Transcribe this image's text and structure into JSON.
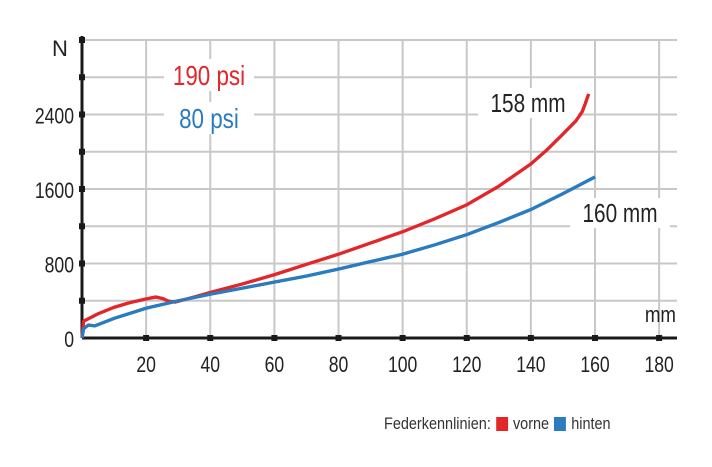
{
  "chart_data": {
    "type": "line",
    "xlabel": "mm",
    "ylabel": "N",
    "xlim": [
      0,
      180
    ],
    "ylim": [
      0,
      3200
    ],
    "x_ticks": [
      "20",
      "40",
      "60",
      "80",
      "100",
      "120",
      "140",
      "160",
      "180"
    ],
    "y_ticks": [
      "0",
      "800",
      "1600",
      "2400"
    ],
    "grid": true,
    "series": [
      {
        "name": "190 psi",
        "color": "#e3262a",
        "end_label": "158 mm",
        "x": [
          0,
          0.5,
          5,
          10,
          15,
          20,
          23,
          25,
          27,
          29,
          35,
          40,
          50,
          60,
          70,
          80,
          90,
          100,
          110,
          120,
          130,
          140,
          145,
          150,
          154,
          156,
          157,
          158
        ],
        "y": [
          0,
          180,
          260,
          330,
          380,
          420,
          440,
          425,
          395,
          385,
          440,
          490,
          580,
          680,
          790,
          900,
          1020,
          1140,
          1280,
          1430,
          1630,
          1870,
          2020,
          2190,
          2330,
          2430,
          2520,
          2620
        ]
      },
      {
        "name": "80 psi",
        "color": "#2a7bbf",
        "end_label": "160 mm",
        "x": [
          0,
          0.5,
          2,
          4,
          10,
          20,
          30,
          40,
          50,
          60,
          70,
          80,
          90,
          100,
          110,
          120,
          130,
          140,
          150,
          160
        ],
        "y": [
          0,
          100,
          140,
          130,
          210,
          320,
          400,
          470,
          535,
          600,
          665,
          740,
          820,
          900,
          1000,
          1110,
          1240,
          1380,
          1550,
          1730
        ]
      }
    ]
  },
  "legend": {
    "title": "Federkennlinien:",
    "items": [
      {
        "label": "vorne",
        "color": "#e3262a"
      },
      {
        "label": "hinten",
        "color": "#2a7bbf"
      }
    ]
  }
}
